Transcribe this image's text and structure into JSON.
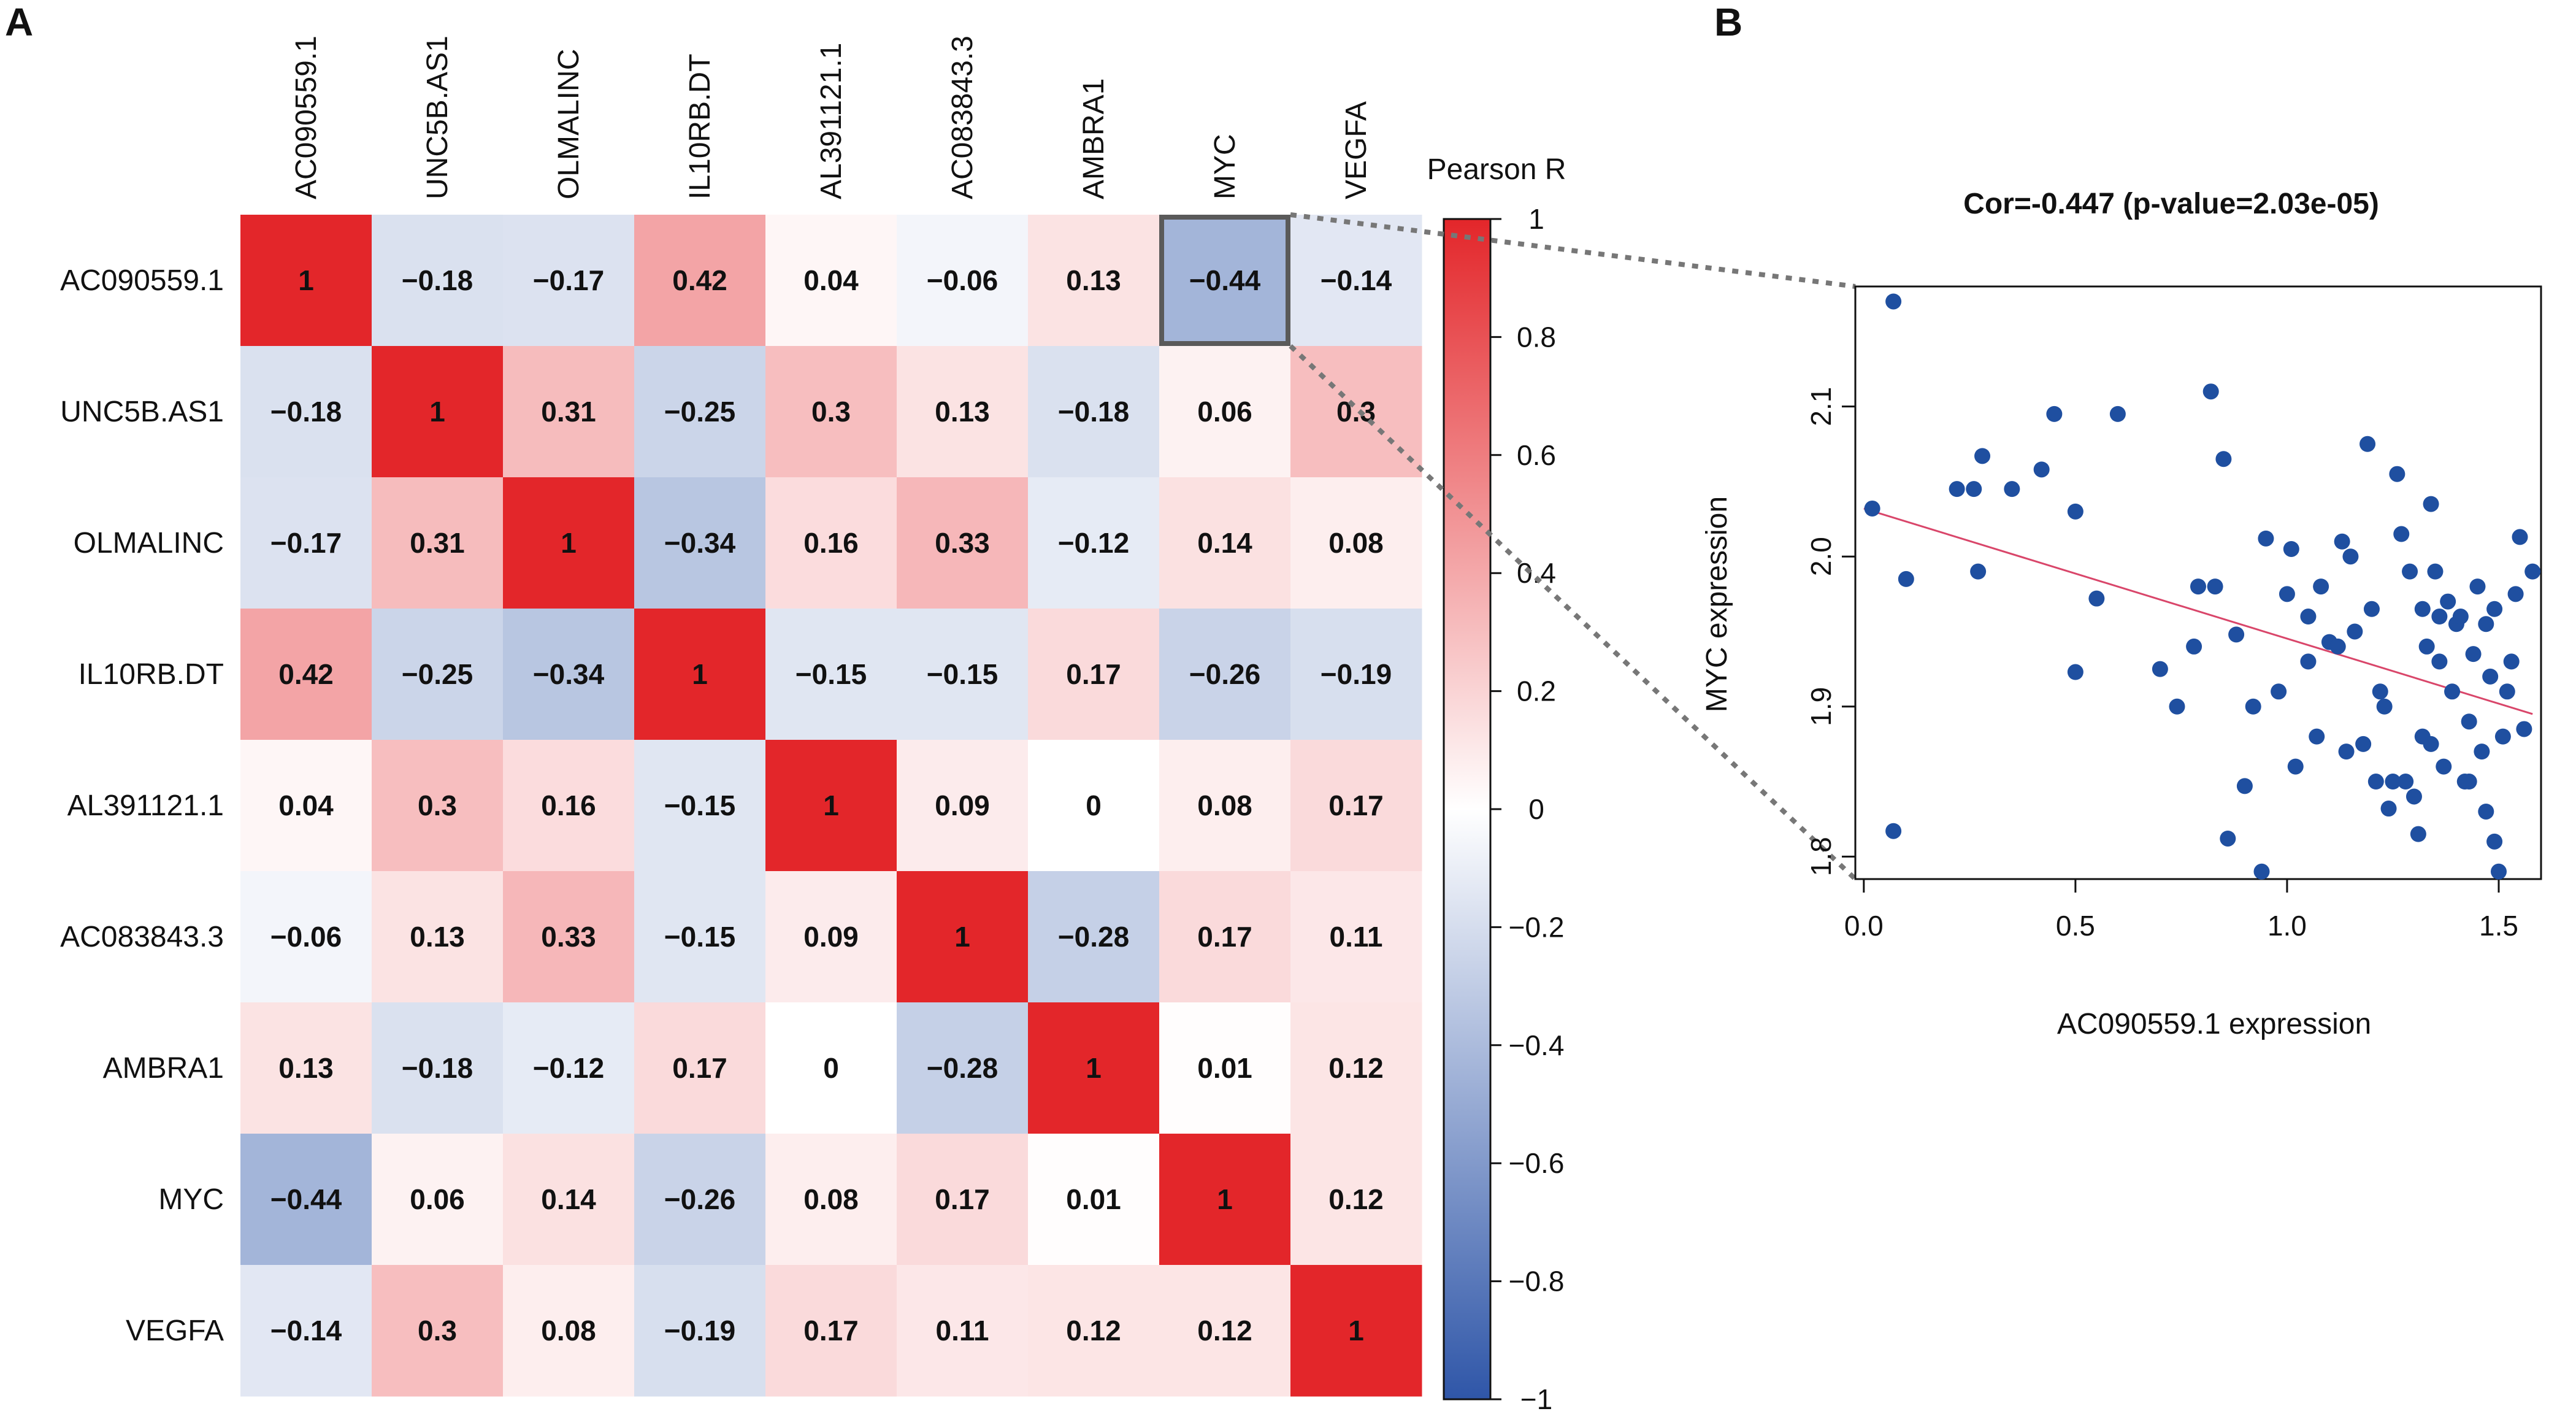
{
  "panels": {
    "a_label": "A",
    "b_label": "B"
  },
  "chart_data": [
    {
      "type": "heatmap",
      "title": "",
      "genes": [
        "AC090559.1",
        "UNC5B.AS1",
        "OLMALINC",
        "IL10RB.DT",
        "AL391121.1",
        "AC083843.3",
        "AMBRA1",
        "MYC",
        "VEGFA"
      ],
      "cell_labels": [
        [
          "1",
          "−0.18",
          "−0.17",
          "0.42",
          "0.04",
          "−0.06",
          "0.13",
          "−0.44",
          "−0.14"
        ],
        [
          "−0.18",
          "1",
          "0.31",
          "−0.25",
          "0.3",
          "0.13",
          "−0.18",
          "0.06",
          "0.3"
        ],
        [
          "−0.17",
          "0.31",
          "1",
          "−0.34",
          "0.16",
          "0.33",
          "−0.12",
          "0.14",
          "0.08"
        ],
        [
          "0.42",
          "−0.25",
          "−0.34",
          "1",
          "−0.15",
          "−0.15",
          "0.17",
          "−0.26",
          "−0.19"
        ],
        [
          "0.04",
          "0.3",
          "0.16",
          "−0.15",
          "1",
          "0.09",
          "0",
          "0.08",
          "0.17"
        ],
        [
          "−0.06",
          "0.13",
          "0.33",
          "−0.15",
          "0.09",
          "1",
          "−0.28",
          "0.17",
          "0.11"
        ],
        [
          "0.13",
          "−0.18",
          "−0.12",
          "0.17",
          "0",
          "−0.28",
          "1",
          "0.01",
          "0.12"
        ],
        [
          "−0.44",
          "0.06",
          "0.14",
          "−0.26",
          "0.08",
          "0.17",
          "0.01",
          "1",
          "0.12"
        ],
        [
          "−0.14",
          "0.3",
          "0.08",
          "−0.19",
          "0.17",
          "0.11",
          "0.12",
          "0.12",
          "1"
        ]
      ],
      "highlighted_cell": {
        "row": "AC090559.1",
        "col": "MYC"
      },
      "colorbar": {
        "title": "Pearson R",
        "range": [
          -1,
          1
        ],
        "ticks": [
          1,
          0.8,
          0.6,
          0.4,
          0.2,
          0,
          -0.2,
          -0.4,
          -0.6,
          -0.8,
          -1
        ],
        "tick_labels": [
          "1",
          "0.8",
          "0.6",
          "0.4",
          "0.2",
          "0",
          "−0.2",
          "−0.4",
          "−0.6",
          "−0.8",
          "−1"
        ],
        "colors": {
          "negative": "#2f56a8",
          "zero": "#ffffff",
          "positive": "#e3262a"
        }
      }
    },
    {
      "type": "scatter",
      "title": "Cor=-0.447 (p-value=2.03e-05)",
      "xlabel": "AC090559.1 expression",
      "ylabel": "MYC expression",
      "xlim": [
        -0.02,
        1.6
      ],
      "ylim": [
        1.785,
        2.18
      ],
      "xticks": [
        0.0,
        0.5,
        1.0,
        1.5
      ],
      "xtick_labels": [
        "0.0",
        "0.5",
        "1.0",
        "1.5"
      ],
      "yticks": [
        1.8,
        1.9,
        2.0,
        2.1
      ],
      "ytick_labels": [
        "1.8",
        "1.9",
        "2.0",
        "2.1"
      ],
      "point_color": "#1f4fa0",
      "line_color": "#d9466a",
      "regression": {
        "x": [
          0.0,
          1.58
        ],
        "y": [
          2.032,
          1.895
        ]
      },
      "points": [
        [
          0.07,
          2.17
        ],
        [
          0.02,
          2.032
        ],
        [
          0.07,
          1.817
        ],
        [
          0.1,
          1.985
        ],
        [
          0.22,
          2.045
        ],
        [
          0.26,
          2.045
        ],
        [
          0.27,
          1.99
        ],
        [
          0.28,
          2.067
        ],
        [
          0.35,
          2.045
        ],
        [
          0.42,
          2.058
        ],
        [
          0.45,
          2.095
        ],
        [
          0.5,
          2.03
        ],
        [
          0.5,
          1.923
        ],
        [
          0.55,
          1.972
        ],
        [
          0.6,
          2.095
        ],
        [
          0.7,
          1.925
        ],
        [
          0.74,
          1.9
        ],
        [
          0.78,
          1.94
        ],
        [
          0.79,
          1.98
        ],
        [
          0.82,
          2.11
        ],
        [
          0.83,
          1.98
        ],
        [
          0.85,
          2.065
        ],
        [
          0.86,
          1.812
        ],
        [
          0.88,
          1.948
        ],
        [
          0.9,
          1.847
        ],
        [
          0.92,
          1.9
        ],
        [
          0.94,
          1.79
        ],
        [
          0.95,
          2.012
        ],
        [
          0.98,
          1.91
        ],
        [
          1.0,
          1.975
        ],
        [
          1.01,
          2.005
        ],
        [
          1.02,
          1.86
        ],
        [
          1.05,
          1.93
        ],
        [
          1.07,
          1.88
        ],
        [
          1.08,
          1.98
        ],
        [
          1.1,
          1.943
        ],
        [
          1.12,
          1.94
        ],
        [
          1.13,
          2.01
        ],
        [
          1.14,
          1.87
        ],
        [
          1.16,
          1.95
        ],
        [
          1.18,
          1.875
        ],
        [
          1.19,
          2.075
        ],
        [
          1.2,
          1.965
        ],
        [
          1.21,
          1.85
        ],
        [
          1.22,
          1.91
        ],
        [
          1.23,
          1.9
        ],
        [
          1.24,
          1.832
        ],
        [
          1.25,
          1.85
        ],
        [
          1.26,
          2.055
        ],
        [
          1.27,
          2.015
        ],
        [
          1.28,
          1.85
        ],
        [
          1.29,
          1.99
        ],
        [
          1.3,
          1.84
        ],
        [
          1.31,
          1.815
        ],
        [
          1.32,
          1.965
        ],
        [
          1.32,
          1.88
        ],
        [
          1.33,
          1.94
        ],
        [
          1.34,
          1.875
        ],
        [
          1.34,
          2.035
        ],
        [
          1.35,
          1.99
        ],
        [
          1.36,
          1.93
        ],
        [
          1.37,
          1.86
        ],
        [
          1.38,
          1.97
        ],
        [
          1.39,
          1.91
        ],
        [
          1.4,
          1.955
        ],
        [
          1.41,
          1.96
        ],
        [
          1.42,
          1.85
        ],
        [
          1.43,
          1.89
        ],
        [
          1.44,
          1.935
        ],
        [
          1.45,
          1.98
        ],
        [
          1.46,
          1.87
        ],
        [
          1.47,
          1.83
        ],
        [
          1.48,
          1.92
        ],
        [
          1.49,
          1.81
        ],
        [
          1.5,
          1.79
        ],
        [
          1.51,
          1.88
        ],
        [
          1.52,
          1.91
        ],
        [
          1.53,
          1.93
        ],
        [
          1.54,
          1.975
        ],
        [
          1.55,
          2.013
        ],
        [
          1.56,
          1.885
        ],
        [
          1.58,
          1.99
        ],
        [
          1.49,
          1.965
        ],
        [
          1.47,
          1.955
        ],
        [
          1.43,
          1.85
        ],
        [
          1.36,
          1.96
        ],
        [
          1.15,
          2.0
        ],
        [
          1.05,
          1.96
        ]
      ]
    }
  ]
}
